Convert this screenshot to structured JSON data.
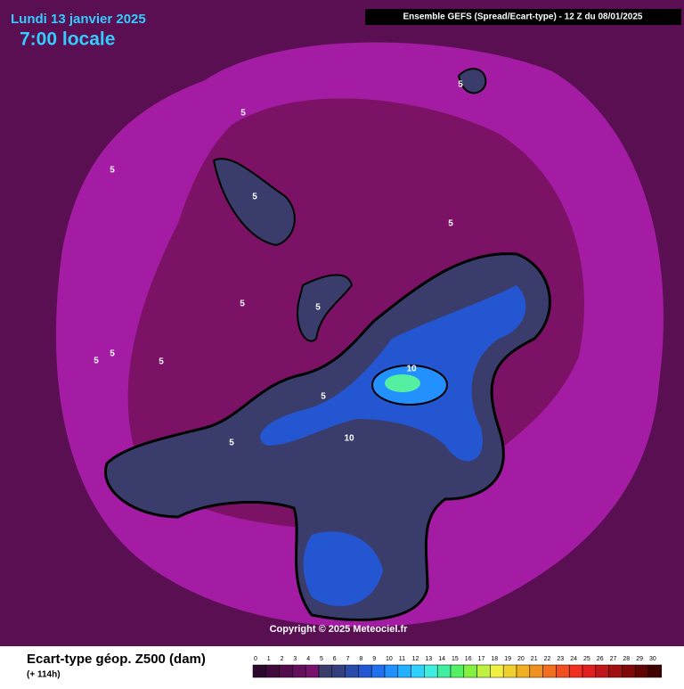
{
  "header": {
    "date": "Lundi 13 janvier 2025",
    "time": "7:00 locale",
    "model": "Ensemble GEFS  (Spread/Ecart-type) - 12 Z du 08/01/2025"
  },
  "map": {
    "contour_labels": [
      "5",
      "5",
      "5",
      "5",
      "5",
      "5",
      "5",
      "5",
      "5",
      "5",
      "5",
      "5",
      "10",
      "10"
    ],
    "copyright": "Copyright © 2025 Meteociel.fr"
  },
  "footer": {
    "title": "Ecart-type géop. Z500 (dam)",
    "lead": "(+ 114h)"
  },
  "scale": {
    "labels": [
      0,
      1,
      2,
      3,
      4,
      5,
      6,
      7,
      8,
      9,
      10,
      11,
      12,
      13,
      14,
      15,
      16,
      17,
      18,
      19,
      20,
      21,
      22,
      23,
      24,
      25,
      26,
      27,
      28,
      29,
      30
    ],
    "colors": [
      "#2c082c",
      "#400a3c",
      "#520c4c",
      "#640f5c",
      "#76126c",
      "#3a3c6c",
      "#34407e",
      "#2a4aa8",
      "#2356d0",
      "#2170ee",
      "#2290ff",
      "#22b0ff",
      "#30d0ff",
      "#40eee0",
      "#40f0a0",
      "#54f064",
      "#84f040",
      "#c0f040",
      "#f0f040",
      "#f0d030",
      "#f0b020",
      "#f09020",
      "#f07020",
      "#f05020",
      "#f03020",
      "#e02020",
      "#c01818",
      "#a01010",
      "#800808",
      "#600404",
      "#400000"
    ]
  }
}
